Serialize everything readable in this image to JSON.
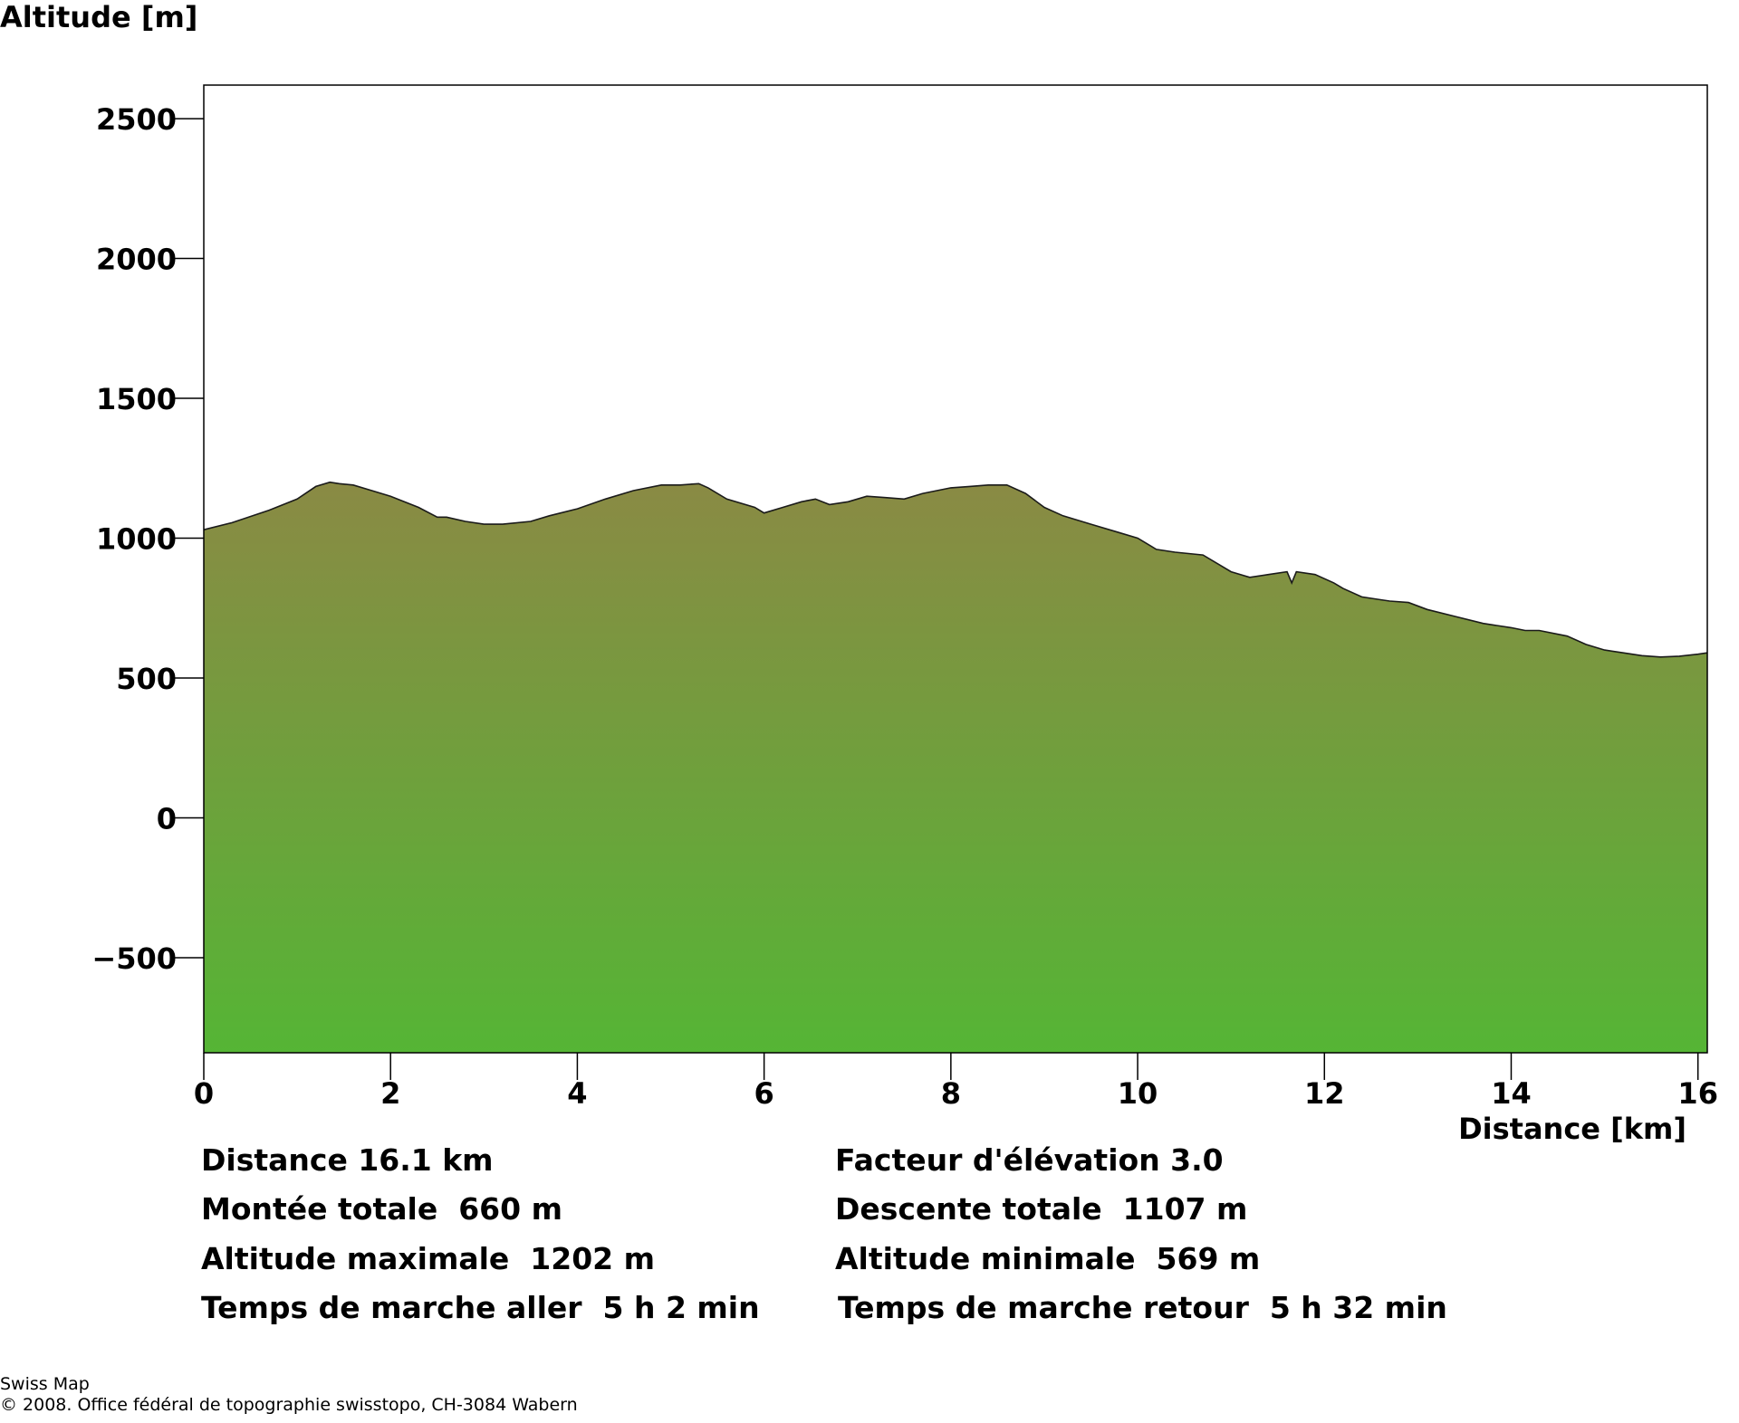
{
  "chart_data": {
    "type": "area",
    "ylabel": "Altitude [m]",
    "xlabel": "Distance [km]",
    "xlim": [
      0,
      16.1
    ],
    "ylim": [
      -840,
      2620
    ],
    "x_ticks": [
      0,
      2,
      4,
      6,
      8,
      10,
      12,
      14,
      16
    ],
    "y_ticks": [
      -500,
      0,
      500,
      1000,
      1500,
      2000,
      2500
    ],
    "grid": false,
    "fill_gradient": {
      "top": "#8A8A44",
      "bottom": "#55B535"
    },
    "line_color": "#1a1a1a",
    "series": [
      {
        "x": [
          0,
          0.3,
          0.7,
          1.0,
          1.2,
          1.35,
          1.45,
          1.6,
          1.8,
          2.0,
          2.3,
          2.5,
          2.6,
          2.8,
          3.0,
          3.2,
          3.5,
          3.7,
          4.0,
          4.3,
          4.6,
          4.9,
          5.1,
          5.3,
          5.4,
          5.6,
          5.9,
          6.0,
          6.2,
          6.4,
          6.55,
          6.7,
          6.9,
          7.1,
          7.3,
          7.5,
          7.7,
          8.0,
          8.2,
          8.4,
          8.6,
          8.8,
          9.0,
          9.2,
          9.5,
          9.8,
          10.0,
          10.2,
          10.4,
          10.7,
          11.0,
          11.2,
          11.4,
          11.6,
          11.65,
          11.7,
          11.9,
          12.1,
          12.2,
          12.4,
          12.6,
          12.7,
          12.9,
          13.1,
          13.4,
          13.7,
          14.0,
          14.15,
          14.3,
          14.6,
          14.8,
          15.0,
          15.2,
          15.4,
          15.6,
          15.8,
          16.0,
          16.1
        ],
        "y": [
          1030,
          1055,
          1100,
          1140,
          1185,
          1200,
          1195,
          1190,
          1170,
          1150,
          1110,
          1075,
          1075,
          1060,
          1050,
          1050,
          1060,
          1080,
          1105,
          1140,
          1170,
          1190,
          1190,
          1195,
          1180,
          1140,
          1110,
          1090,
          1110,
          1130,
          1140,
          1120,
          1130,
          1150,
          1145,
          1140,
          1160,
          1180,
          1185,
          1190,
          1190,
          1160,
          1110,
          1080,
          1050,
          1020,
          1000,
          960,
          950,
          940,
          880,
          860,
          870,
          880,
          840,
          880,
          870,
          840,
          820,
          790,
          780,
          775,
          770,
          745,
          720,
          695,
          680,
          670,
          670,
          650,
          620,
          600,
          590,
          580,
          575,
          578,
          585,
          590
        ]
      }
    ]
  },
  "stats": {
    "left": [
      "Distance 16.1 km",
      "Montée totale  660 m",
      "Altitude maximale  1202 m",
      "Temps de marche aller  5 h 2 min"
    ],
    "right": [
      "Facteur d'élévation 3.0",
      "Descente totale  1107 m",
      "Altitude minimale  569 m",
      "Temps de marche retour  5 h 32 min"
    ]
  },
  "credits": {
    "line1": "Swiss Map",
    "line2": "© 2008. Office fédéral de topographie swisstopo, CH-3084 Wabern"
  }
}
